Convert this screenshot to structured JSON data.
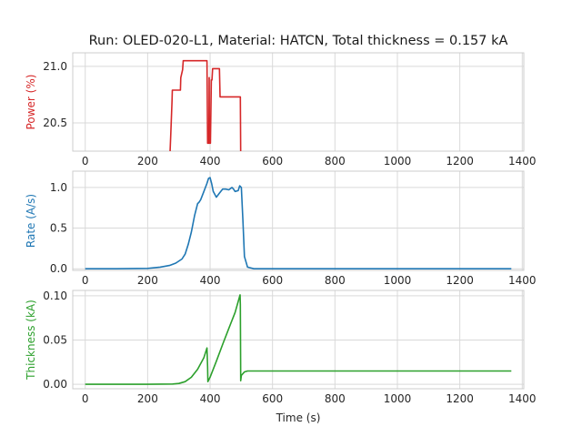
{
  "chart_data": {
    "title": "Run: OLED-020-L1, Material: HATCN, Total thickness = 0.157 kA",
    "type": "line",
    "xlabel": "Time (s)",
    "xlim": [
      -40,
      1405
    ],
    "xticks": [
      0,
      200,
      400,
      600,
      800,
      1000,
      1200,
      1400
    ],
    "grid": true,
    "panels": [
      {
        "name": "power",
        "ylabel": "Power (%)",
        "color": "#d62728",
        "ylim": [
          20.25,
          21.12
        ],
        "yticks": [
          20.5,
          21.0
        ],
        "ytick_labels": [
          "20.5",
          "21.0"
        ],
        "series": {
          "x": [
            271,
            274,
            276,
            278,
            279,
            290,
            305,
            306,
            312,
            314,
            320,
            390,
            392,
            396,
            397,
            398,
            401,
            404,
            406,
            408,
            430,
            432,
            470,
            497,
            498
          ],
          "y": [
            20.2,
            20.4,
            20.55,
            20.7,
            20.79,
            20.79,
            20.79,
            20.9,
            20.97,
            21.05,
            21.05,
            21.05,
            20.32,
            20.32,
            20.9,
            20.32,
            20.32,
            20.88,
            20.88,
            20.98,
            20.98,
            20.73,
            20.73,
            20.73,
            20.2
          ]
        }
      },
      {
        "name": "rate",
        "ylabel": "Rate (A/s)",
        "color": "#1f77b4",
        "ylim": [
          -0.02,
          1.2
        ],
        "yticks": [
          0.0,
          0.5,
          1.0
        ],
        "ytick_labels": [
          "0.0",
          "0.5",
          "1.0"
        ],
        "series": {
          "x": [
            0,
            100,
            200,
            240,
            270,
            290,
            310,
            320,
            330,
            340,
            350,
            360,
            365,
            370,
            380,
            390,
            395,
            400,
            405,
            410,
            420,
            430,
            440,
            450,
            460,
            470,
            475,
            480,
            490,
            495,
            500,
            505,
            510,
            520,
            540,
            600,
            800,
            1000,
            1200,
            1365
          ],
          "y": [
            0.0,
            0.0,
            0.005,
            0.02,
            0.04,
            0.07,
            0.12,
            0.18,
            0.3,
            0.45,
            0.65,
            0.8,
            0.82,
            0.85,
            0.95,
            1.05,
            1.11,
            1.12,
            1.05,
            0.95,
            0.88,
            0.93,
            0.98,
            0.98,
            0.97,
            1.0,
            0.98,
            0.95,
            0.96,
            1.02,
            1.0,
            0.6,
            0.15,
            0.02,
            0.0,
            0.0,
            0.0,
            0.0,
            0.0,
            0.0
          ]
        }
      },
      {
        "name": "thickness",
        "ylabel": "Thickness (kA)",
        "color": "#2ca02c",
        "ylim": [
          -0.005,
          0.106
        ],
        "yticks": [
          0.0,
          0.05,
          0.1
        ],
        "ytick_labels": [
          "0.00",
          "0.05",
          "0.10"
        ],
        "series": {
          "x": [
            0,
            100,
            200,
            280,
            300,
            320,
            340,
            360,
            380,
            390,
            392,
            393,
            400,
            420,
            440,
            460,
            480,
            496,
            497,
            498,
            500,
            510,
            520,
            600,
            800,
            1000,
            1200,
            1365
          ],
          "y": [
            0.0,
            0.0,
            0.0,
            0.0003,
            0.001,
            0.003,
            0.008,
            0.017,
            0.03,
            0.041,
            0.02,
            0.003,
            0.008,
            0.026,
            0.045,
            0.063,
            0.081,
            0.101,
            0.09,
            0.004,
            0.01,
            0.014,
            0.015,
            0.015,
            0.015,
            0.015,
            0.015,
            0.015
          ]
        }
      }
    ]
  }
}
